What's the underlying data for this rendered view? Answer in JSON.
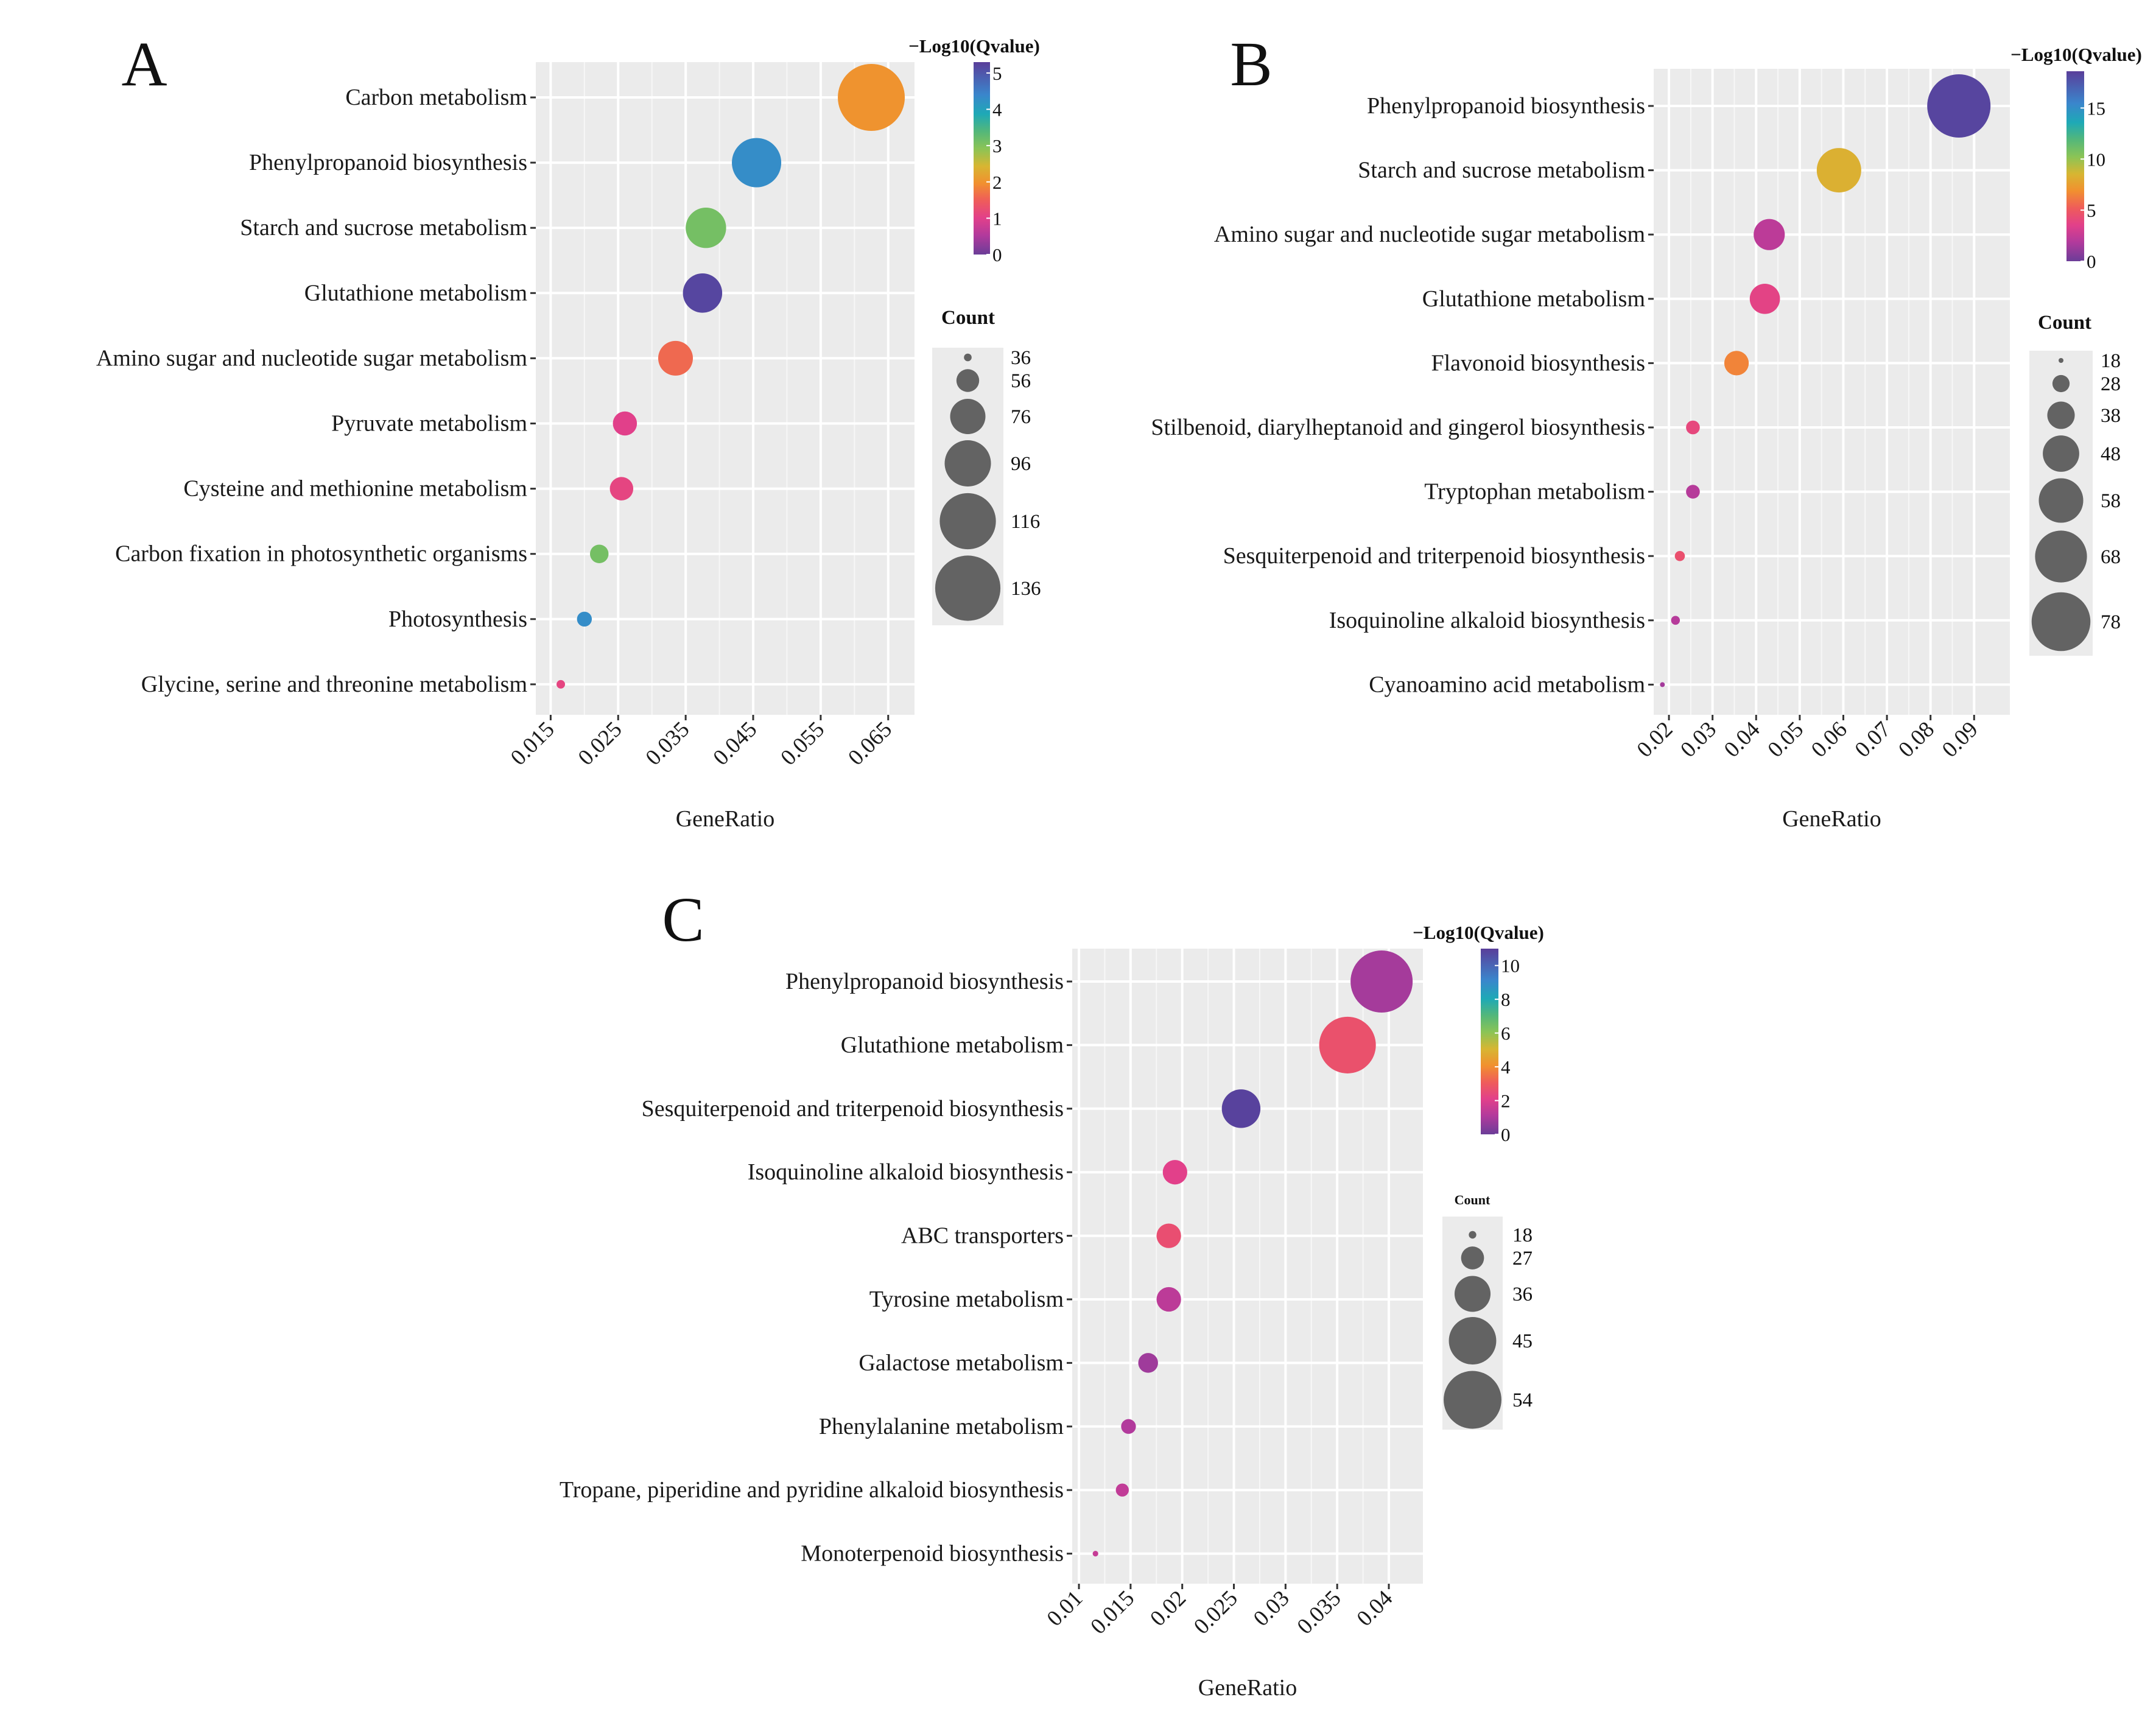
{
  "chart_data": [
    {
      "type": "scatter",
      "panel_label": "A",
      "xlabel": "GeneRatio",
      "xlim": [
        0.0128,
        0.0689
      ],
      "xticks": [
        0.015,
        0.025,
        0.035,
        0.045,
        0.055,
        0.065
      ],
      "xtick_labels": [
        "0.015",
        "0.025",
        "0.035",
        "0.045",
        "0.055",
        "0.065"
      ],
      "grid": true,
      "terms": [
        "Carbon metabolism",
        "Phenylpropanoid biosynthesis",
        "Starch and sucrose metabolism",
        "Glutathione metabolism",
        "Amino sugar and nucleotide sugar metabolism",
        "Pyruvate metabolism",
        "Cysteine and methionine metabolism",
        "Carbon fixation in photosynthetic organisms",
        "Photosynthesis",
        "Glycine, serine and threonine metabolism"
      ],
      "gene_ratio": [
        0.0625,
        0.0455,
        0.038,
        0.0375,
        0.0335,
        0.026,
        0.0255,
        0.0222,
        0.02,
        0.0165
      ],
      "count": [
        140,
        102,
        85,
        83,
        75,
        58,
        57,
        50,
        45,
        37
      ],
      "neg_log10_qvalue": [
        2.0,
        4.3,
        3.1,
        5.2,
        1.6,
        1.0,
        1.1,
        3.1,
        4.3,
        1.1
      ],
      "color_legend": {
        "title": "−Log10(Qvalue)",
        "max": 5.3,
        "ticks": [
          0,
          1,
          2,
          3,
          4,
          5
        ],
        "tick_labels": [
          "0",
          "1",
          "2",
          "3",
          "4",
          "5"
        ]
      },
      "size_legend": {
        "title": "Count",
        "breaks": [
          36,
          56,
          76,
          96,
          116,
          136
        ],
        "labels": [
          "36",
          "56",
          "76",
          "96",
          "116",
          "136"
        ]
      }
    },
    {
      "type": "scatter",
      "panel_label": "B",
      "xlabel": "GeneRatio",
      "xlim": [
        0.0165,
        0.0982
      ],
      "xticks": [
        0.02,
        0.03,
        0.04,
        0.05,
        0.06,
        0.07,
        0.08,
        0.09
      ],
      "xtick_labels": [
        "0.02",
        "0.03",
        "0.04",
        "0.05",
        "0.06",
        "0.07",
        "0.08",
        "0.09"
      ],
      "grid": true,
      "terms": [
        "Phenylpropanoid biosynthesis",
        "Starch and sucrose metabolism",
        "Amino sugar and nucleotide sugar metabolism",
        "Glutathione metabolism",
        "Flavonoid biosynthesis",
        "Stilbenoid, diarylheptanoid and gingerol biosynthesis",
        "Tryptophan metabolism",
        "Sesquiterpenoid and triterpenoid biosynthesis",
        "Isoquinoline alkaloid biosynthesis",
        "Cyanoamino acid metabolism"
      ],
      "gene_ratio": [
        0.0865,
        0.059,
        0.043,
        0.042,
        0.0355,
        0.0255,
        0.0255,
        0.0225,
        0.0215,
        0.0185
      ],
      "count": [
        85,
        58,
        42,
        41,
        35,
        25,
        25,
        22,
        21,
        18
      ],
      "neg_log10_qvalue": [
        18.3,
        8.3,
        2.2,
        3.7,
        6.5,
        4.0,
        2.0,
        4.5,
        2.0,
        1.5
      ],
      "color_legend": {
        "title": "−Log10(Qvalue)",
        "max": 18.6,
        "ticks": [
          0,
          5,
          10,
          15
        ],
        "tick_labels": [
          "0",
          "5",
          "10",
          "15"
        ]
      },
      "size_legend": {
        "title": "Count",
        "breaks": [
          18,
          28,
          38,
          48,
          58,
          68,
          78
        ],
        "labels": [
          "18",
          "28",
          "38",
          "48",
          "58",
          "68",
          "78"
        ]
      }
    },
    {
      "type": "scatter",
      "panel_label": "C",
      "xlabel": "GeneRatio",
      "xlim": [
        0.00935,
        0.0433
      ],
      "xticks": [
        0.01,
        0.015,
        0.02,
        0.025,
        0.03,
        0.035,
        0.04
      ],
      "xtick_labels": [
        "0.01",
        "0.015",
        "0.02",
        "0.025",
        "0.03",
        "0.035",
        "0.04"
      ],
      "grid": true,
      "terms": [
        "Phenylpropanoid biosynthesis",
        "Glutathione metabolism",
        "Sesquiterpenoid and triterpenoid biosynthesis",
        "Isoquinoline alkaloid biosynthesis",
        "ABC transporters",
        "Tyrosine metabolism",
        "Galactose metabolism",
        "Phenylalanine metabolism",
        "Tropane, piperidine and pyridine alkaloid biosynthesis",
        "Monoterpenoid biosynthesis"
      ],
      "gene_ratio": [
        0.0393,
        0.036,
        0.0257,
        0.0193,
        0.0187,
        0.0187,
        0.0167,
        0.0148,
        0.0142,
        0.0116
      ],
      "count": [
        58,
        53,
        38,
        28,
        28,
        28,
        25,
        22,
        21,
        17
      ],
      "neg_log10_qvalue": [
        0.9,
        2.7,
        10.9,
        2.1,
        2.6,
        1.3,
        0.8,
        1.1,
        1.4,
        1.5
      ],
      "color_legend": {
        "title": "−Log10(Qvalue)",
        "max": 11,
        "ticks": [
          0,
          2,
          4,
          6,
          8,
          10
        ],
        "tick_labels": [
          "0",
          "2",
          "4",
          "6",
          "8",
          "10"
        ]
      },
      "size_legend": {
        "title": "Count",
        "breaks": [
          18,
          27,
          36,
          45,
          54
        ],
        "labels": [
          "18",
          "27",
          "36",
          "45",
          "54"
        ]
      }
    }
  ]
}
